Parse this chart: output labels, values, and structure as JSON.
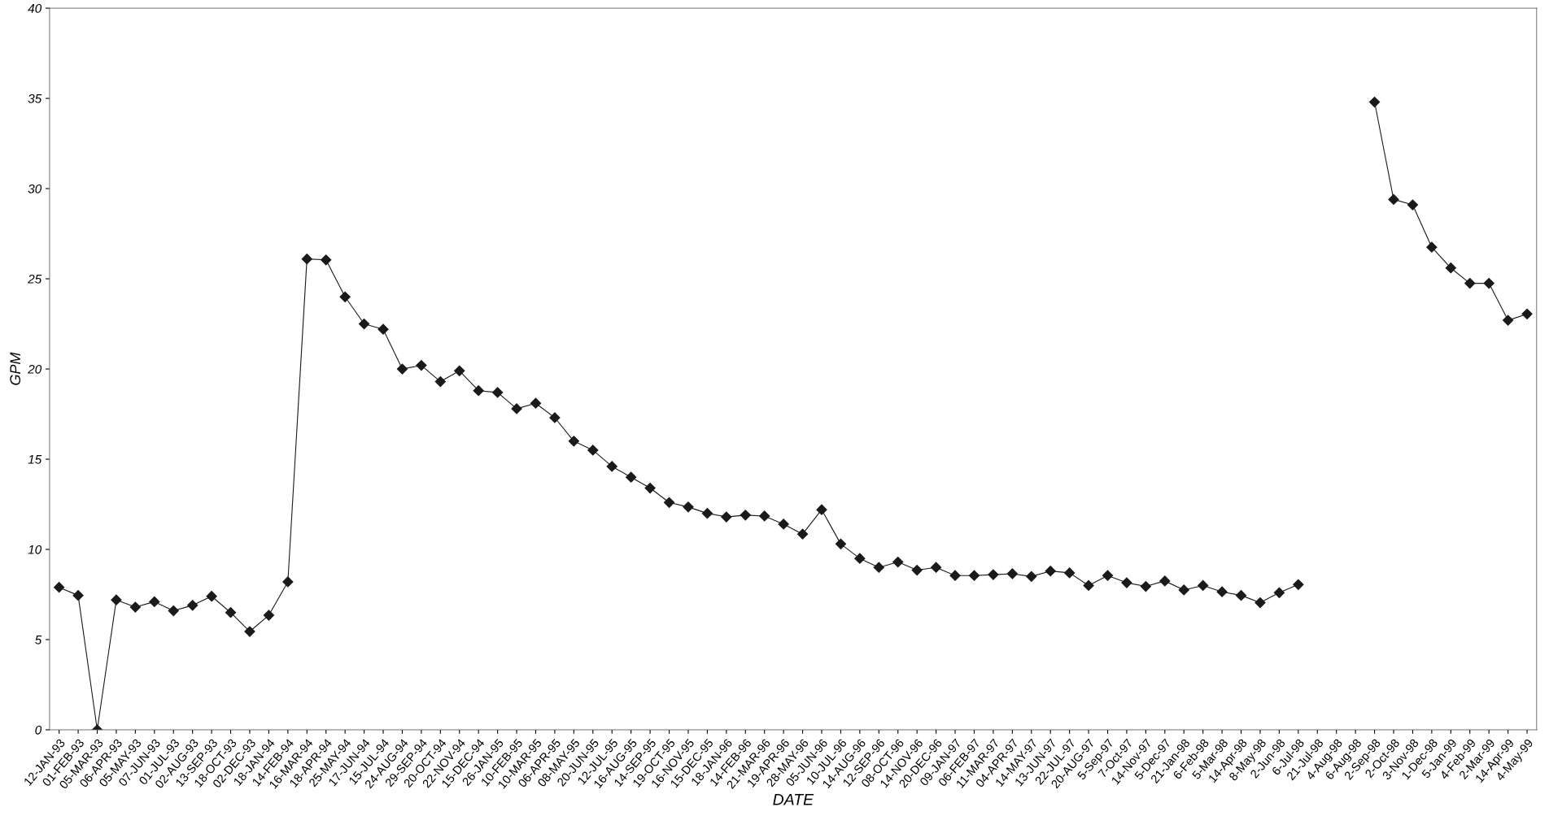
{
  "chart_data": {
    "type": "line",
    "xlabel": "DATE",
    "ylabel": "GPM",
    "categories": [
      "12-JAN-93",
      "01-FEB-93",
      "05-MAR-93",
      "06-APR-93",
      "05-MAY-93",
      "07-JUN-93",
      "01-JUL-93",
      "02-AUG-93",
      "13-SEP-93",
      "18-OCT-93",
      "02-DEC-93",
      "18-JAN-94",
      "14-FEB-94",
      "16-MAR-94",
      "18-APR-94",
      "25-MAY-94",
      "17-JUN-94",
      "15-JUL-94",
      "24-AUG-94",
      "29-SEP-94",
      "20-OCT-94",
      "22-NOV-94",
      "15-DEC-94",
      "26-JAN-95",
      "10-FEB-95",
      "10-MAR-95",
      "06-APR-95",
      "08-MAY-95",
      "20-JUN-95",
      "12-JUL-95",
      "16-AUG-95",
      "14-SEP-95",
      "19-OCT-95",
      "16-NOV-95",
      "15-DEC-95",
      "18-JAN-96",
      "14-FEB-96",
      "21-MAR-96",
      "19-APR-96",
      "28-MAY-96",
      "05-JUN-96",
      "10-JUL-96",
      "14-AUG-96",
      "12-SEP-96",
      "08-OCT-96",
      "14-NOV-96",
      "20-DEC-96",
      "09-JAN-97",
      "06-FEB-97",
      "11-MAR-97",
      "04-APR-97",
      "14-MAY-97",
      "13-JUN-97",
      "22-JUL-97",
      "20-AUG-97",
      "5-Sep-97",
      "7-Oct-97",
      "14-Nov-97",
      "5-Dec-97",
      "21-Jan-98",
      "6-Feb-98",
      "5-Mar-98",
      "14-Apr-98",
      "8-May-98",
      "2-Jun-98",
      "6-Jul-98",
      "21-Jul-98",
      "4-Aug-98",
      "6-Aug-98",
      "2-Sep-98",
      "2-Oct-98",
      "3-Nov-98",
      "1-Dec-98",
      "5-Jan-99",
      "4-Feb-99",
      "2-Mar-99",
      "14-Apr-99",
      "4-May-99"
    ],
    "series": [
      {
        "color": "#1a1a1a",
        "values": [
          7.9,
          7.45,
          0,
          7.2,
          6.8,
          7.1,
          6.6,
          6.9,
          7.4,
          6.5,
          5.45,
          6.35,
          8.2,
          26.1,
          26.05,
          24.0,
          22.5,
          22.2,
          20.0,
          20.2,
          19.3,
          19.9,
          18.8,
          18.7,
          17.8,
          18.1,
          17.3,
          16.0,
          15.5,
          14.6,
          14.0,
          13.4,
          12.6,
          12.35,
          12.0,
          11.8,
          11.9,
          11.85,
          11.4,
          10.85,
          12.2,
          10.3,
          9.5,
          9.0,
          9.3,
          8.85,
          9.0,
          8.55,
          8.55,
          8.6,
          8.65,
          8.5,
          8.8,
          8.7,
          8.0,
          8.55,
          8.15,
          7.95,
          8.25,
          7.75,
          8.0,
          7.65,
          7.45,
          7.05,
          7.6,
          8.05,
          null,
          null,
          null,
          34.8,
          29.4,
          29.1,
          26.75,
          25.6,
          24.75,
          24.75,
          22.7,
          23.05
        ]
      }
    ],
    "ylim": [
      0,
      40
    ],
    "yticks": [
      0,
      5,
      10,
      15,
      20,
      25,
      30,
      35,
      40
    ],
    "grid": false,
    "legend": false,
    "marker": "diamond",
    "line_style": "solid"
  }
}
